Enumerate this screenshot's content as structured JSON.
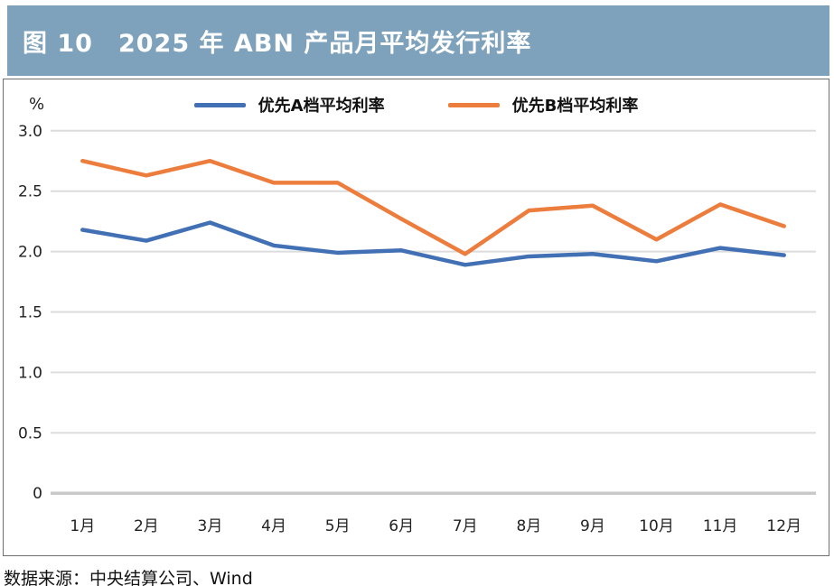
{
  "header": {
    "title": "图 10　2025 年 ABN 产品月平均发行利率",
    "bg_color": "#7EA2BC",
    "text_color": "#FFFFFF"
  },
  "chart_data": {
    "type": "line",
    "title": "2025 年 ABN 产品月平均发行利率",
    "y_unit_label": "%",
    "categories": [
      "1月",
      "2月",
      "3月",
      "4月",
      "5月",
      "6月",
      "7月",
      "8月",
      "9月",
      "10月",
      "11月",
      "12月"
    ],
    "series": [
      {
        "name": "优先A档平均利率",
        "color": "#4170B4",
        "values": [
          2.18,
          2.09,
          2.24,
          2.05,
          1.99,
          2.01,
          1.89,
          1.96,
          1.98,
          1.92,
          2.03,
          1.97
        ]
      },
      {
        "name": "优先B档平均利率",
        "color": "#EC7D3D",
        "values": [
          2.75,
          2.63,
          2.75,
          2.57,
          2.57,
          2.27,
          1.98,
          2.34,
          2.38,
          2.1,
          2.39,
          2.21
        ]
      }
    ],
    "ylim": [
      0,
      3.0
    ],
    "y_ticks": [
      "3.0",
      "2.5",
      "2.0",
      "1.5",
      "1.0",
      "0.5",
      "0"
    ],
    "grid": "horizontal",
    "gridline_color": "#DCDCDC",
    "baseline_color": "#C9C9C9",
    "legend_position": "top"
  },
  "footer": {
    "source": "数据来源：中央结算公司、Wind"
  }
}
